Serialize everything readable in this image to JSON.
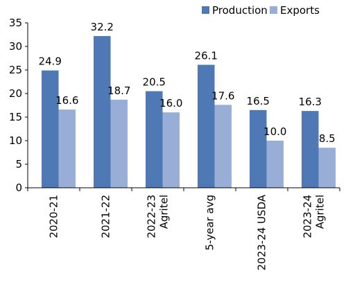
{
  "chart_data": {
    "type": "bar",
    "categories": [
      [
        "2020-21"
      ],
      [
        "2021-22"
      ],
      [
        "2022-23",
        "Agritel"
      ],
      [
        "5-year avg"
      ],
      [
        "2023-24 USDA"
      ],
      [
        "2023-24",
        "Agritel"
      ]
    ],
    "series": [
      {
        "name": "Production",
        "color": "#4f79b5",
        "values": [
          24.9,
          32.2,
          20.5,
          26.1,
          16.5,
          16.3
        ],
        "labels": [
          "24.9",
          "32.2",
          "20.5",
          "26.1",
          "16.5",
          "16.3"
        ]
      },
      {
        "name": "Exports",
        "color": "#99aed6",
        "values": [
          16.6,
          18.7,
          16.0,
          17.6,
          10.0,
          8.5
        ],
        "labels": [
          "16.6",
          "18.7",
          "16.0",
          "17.6",
          "10.0",
          "8.5"
        ]
      }
    ],
    "ylim": [
      0,
      35
    ],
    "yticks": [
      "0",
      "5",
      "10",
      "15",
      "20",
      "25",
      "30",
      "35"
    ],
    "legend_position": "top-right",
    "grid": false
  }
}
